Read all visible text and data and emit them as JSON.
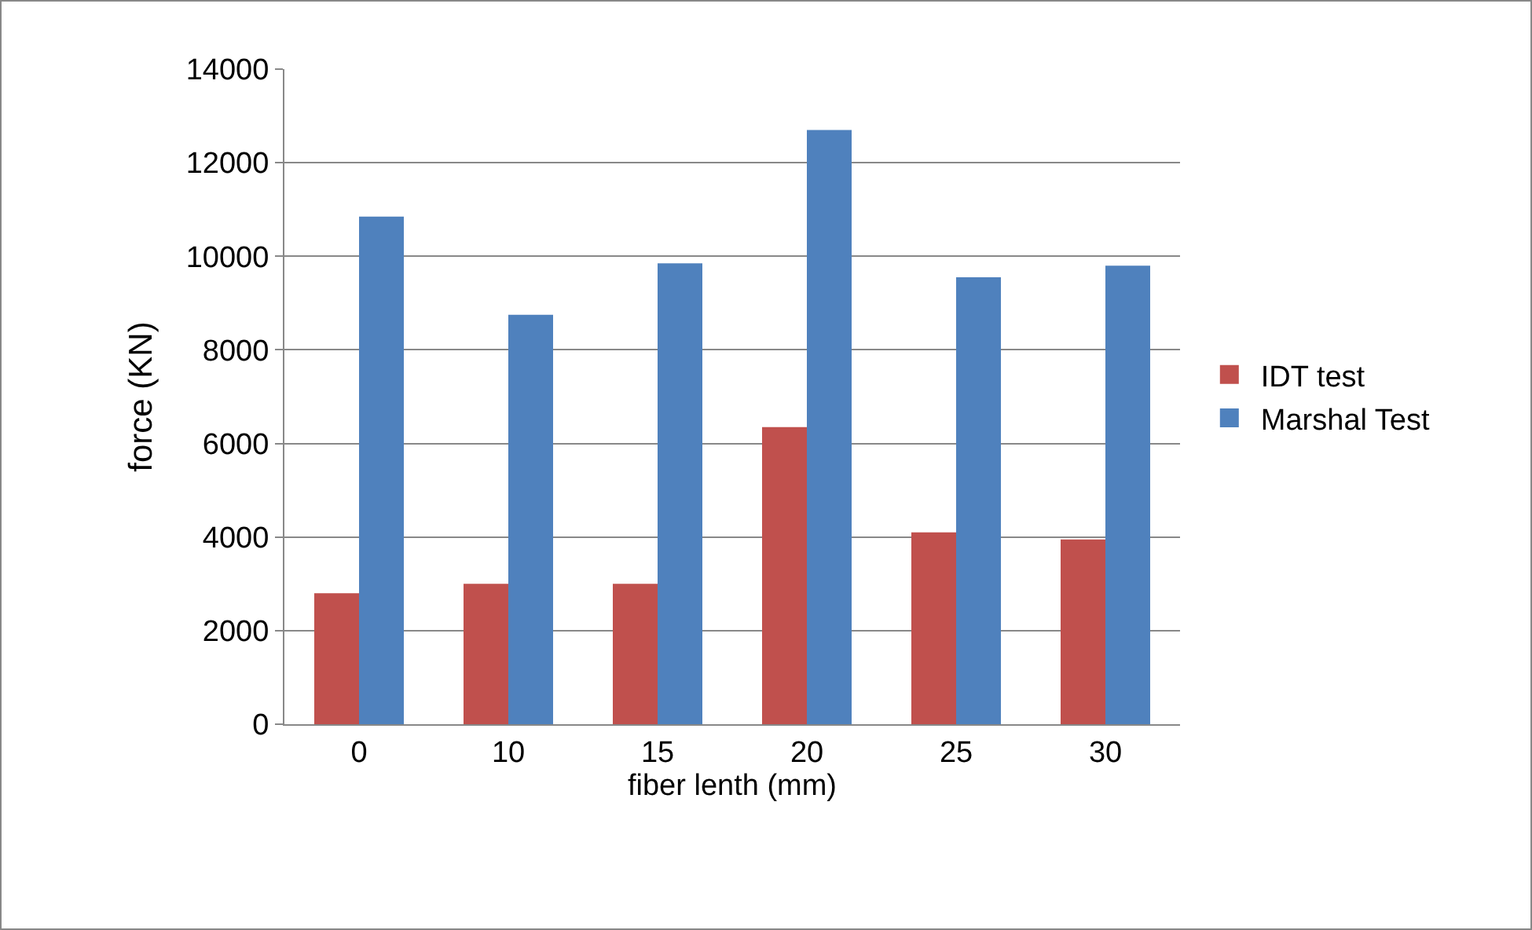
{
  "chart_data": {
    "type": "bar",
    "xlabel": "fiber lenth (mm)",
    "ylabel": "force (KN)",
    "categories": [
      "0",
      "10",
      "15",
      "20",
      "25",
      "30"
    ],
    "series": [
      {
        "name": "IDT test",
        "color": "#c0504d",
        "values": [
          2800,
          3000,
          3000,
          6350,
          4100,
          3950
        ]
      },
      {
        "name": "Marshal Test",
        "color": "#4f81bd",
        "values": [
          10850,
          8750,
          9850,
          12700,
          9550,
          9800
        ]
      }
    ],
    "ylim": [
      0,
      14000
    ],
    "yticks": [
      0,
      2000,
      4000,
      6000,
      8000,
      10000,
      12000,
      14000
    ],
    "grid": "y",
    "legend": "right"
  }
}
